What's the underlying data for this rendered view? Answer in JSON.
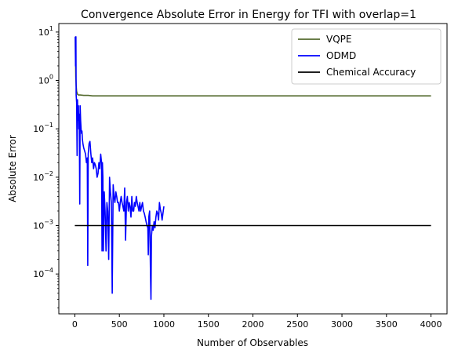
{
  "chart_data": {
    "type": "line",
    "title": "Convergence Absolute Error in Energy for TFI with overlap=1",
    "xlabel": "Number of Observables",
    "ylabel": "Absolute Error",
    "xlim": [
      -180,
      4180
    ],
    "ylim": [
      1.5e-05,
      15
    ],
    "yscale": "log",
    "grid": false,
    "legend_position": "top-right",
    "x_ticks": [
      {
        "value": 0,
        "label": "0"
      },
      {
        "value": 500,
        "label": "500"
      },
      {
        "value": 1000,
        "label": "1000"
      },
      {
        "value": 1500,
        "label": "1500"
      },
      {
        "value": 2000,
        "label": "2000"
      },
      {
        "value": 2500,
        "label": "2500"
      },
      {
        "value": 3000,
        "label": "3000"
      },
      {
        "value": 3500,
        "label": "3500"
      },
      {
        "value": 4000,
        "label": "4000"
      }
    ],
    "y_ticks": [
      {
        "value": 0.0001,
        "base": "10",
        "exp": "−4"
      },
      {
        "value": 0.001,
        "base": "10",
        "exp": "−3"
      },
      {
        "value": 0.01,
        "base": "10",
        "exp": "−2"
      },
      {
        "value": 0.1,
        "base": "10",
        "exp": "−1"
      },
      {
        "value": 1,
        "base": "10",
        "exp": "0"
      },
      {
        "value": 10,
        "base": "10",
        "exp": "1"
      }
    ],
    "series": [
      {
        "name": "VQPE",
        "color": "#556b2f",
        "x": [
          5,
          8,
          10,
          15,
          20,
          30,
          40,
          60,
          100,
          150,
          200,
          250,
          300,
          500,
          1000,
          2000,
          3000,
          4000
        ],
        "y": [
          8.0,
          3.0,
          1.2,
          0.8,
          0.6,
          0.52,
          0.5,
          0.5,
          0.49,
          0.49,
          0.48,
          0.48,
          0.48,
          0.48,
          0.48,
          0.48,
          0.48,
          0.48
        ]
      },
      {
        "name": "ODMD",
        "color": "#0000ff",
        "x": [
          5,
          8,
          12,
          15,
          20,
          25,
          30,
          35,
          40,
          45,
          50,
          55,
          60,
          65,
          70,
          75,
          80,
          85,
          90,
          95,
          100,
          110,
          120,
          130,
          140,
          145,
          150,
          160,
          170,
          180,
          190,
          200,
          210,
          220,
          230,
          240,
          250,
          260,
          270,
          280,
          290,
          300,
          305,
          310,
          315,
          320,
          330,
          340,
          350,
          360,
          370,
          380,
          390,
          400,
          410,
          420,
          430,
          440,
          450,
          460,
          470,
          480,
          490,
          500,
          510,
          520,
          530,
          540,
          550,
          560,
          570,
          580,
          590,
          600,
          610,
          620,
          630,
          640,
          650,
          660,
          670,
          680,
          690,
          700,
          710,
          720,
          730,
          740,
          750,
          760,
          770,
          780,
          790,
          800,
          810,
          820,
          825,
          830,
          840,
          850,
          855,
          860,
          870,
          880,
          890,
          900,
          910,
          920,
          930,
          940,
          950,
          960,
          970,
          980,
          990,
          1000
        ],
        "y": [
          8.0,
          2.0,
          8.0,
          0.5,
          0.35,
          0.028,
          0.4,
          0.15,
          0.3,
          0.1,
          0.2,
          0.0028,
          0.3,
          0.15,
          0.1,
          0.08,
          0.09,
          0.06,
          0.05,
          0.045,
          0.04,
          0.035,
          0.03,
          0.02,
          0.025,
          0.00015,
          0.03,
          0.05,
          0.055,
          0.03,
          0.02,
          0.025,
          0.015,
          0.02,
          0.018,
          0.015,
          0.01,
          0.012,
          0.02,
          0.015,
          0.03,
          0.02,
          0.0003,
          0.02,
          0.01,
          0.0003,
          0.005,
          0.002,
          0.0003,
          0.003,
          0.002,
          0.0002,
          0.01,
          0.005,
          0.003,
          4e-05,
          0.007,
          0.004,
          0.003,
          0.005,
          0.004,
          0.003,
          0.003,
          0.002,
          0.003,
          0.004,
          0.003,
          0.0025,
          0.002,
          0.006,
          0.0005,
          0.003,
          0.004,
          0.002,
          0.003,
          0.0025,
          0.0015,
          0.004,
          0.002,
          0.002,
          0.003,
          0.0025,
          0.004,
          0.003,
          0.0025,
          0.002,
          0.003,
          0.002,
          0.0025,
          0.003,
          0.002,
          0.0018,
          0.0015,
          0.0012,
          0.001,
          0.0009,
          0.00025,
          0.0015,
          0.002,
          0.0001,
          3e-05,
          0.0006,
          0.001,
          0.0008,
          0.0012,
          0.0009,
          0.0015,
          0.002,
          0.0018,
          0.0013,
          0.003,
          0.0022,
          0.0018,
          0.0013,
          0.0018,
          0.0025
        ]
      },
      {
        "name": "Chemical Accuracy",
        "color": "#000000",
        "x": [
          0,
          4000
        ],
        "y": [
          0.001,
          0.001
        ]
      }
    ]
  }
}
